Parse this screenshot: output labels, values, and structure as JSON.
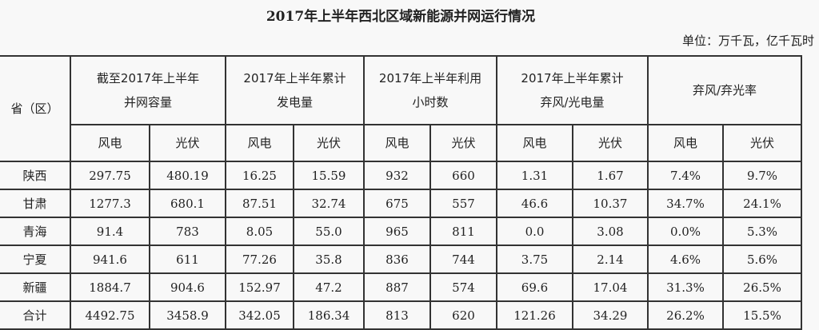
{
  "title": "2017年上半年西北区域新能源并网运行情况",
  "unit": "单位：万千瓦，亿千瓦时",
  "table": {
    "province_header": "省（区）",
    "groups": [
      "截至2017年上半年并网容量",
      "2017年上半年累计发电量",
      "2017年上半年利用小时数",
      "2017年上半年累计弃风/光电量",
      "弃风/弃光率"
    ],
    "sub": {
      "wind": "风电",
      "solar": "光伏"
    },
    "rows": [
      {
        "name": "陕西",
        "values": [
          "297.75",
          "480.19",
          "16.25",
          "15.59",
          "932",
          "660",
          "1.31",
          "1.67",
          "7.4%",
          "9.7%"
        ]
      },
      {
        "name": "甘肃",
        "values": [
          "1277.3",
          "680.1",
          "87.51",
          "32.74",
          "675",
          "557",
          "46.6",
          "10.37",
          "34.7%",
          "24.1%"
        ]
      },
      {
        "name": "青海",
        "values": [
          "91.4",
          "783",
          "8.05",
          "55.0",
          "965",
          "811",
          "0.0",
          "3.08",
          "0.0%",
          "5.3%"
        ]
      },
      {
        "name": "宁夏",
        "values": [
          "941.6",
          "611",
          "77.26",
          "35.8",
          "836",
          "744",
          "3.75",
          "2.14",
          "4.6%",
          "5.6%"
        ]
      },
      {
        "name": "新疆",
        "values": [
          "1884.7",
          "904.6",
          "152.97",
          "47.2",
          "887",
          "574",
          "69.6",
          "17.04",
          "31.3%",
          "26.5%"
        ]
      },
      {
        "name": "合计",
        "values": [
          "4492.75",
          "3458.9",
          "342.05",
          "186.34",
          "813",
          "620",
          "121.26",
          "34.29",
          "26.2%",
          "15.5%"
        ]
      }
    ]
  }
}
